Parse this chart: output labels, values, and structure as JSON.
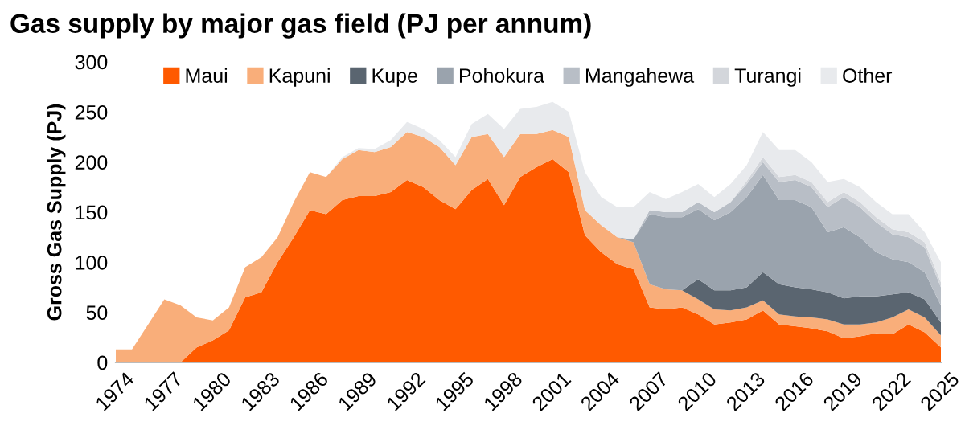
{
  "chart_data": {
    "type": "area",
    "stacked": true,
    "title": "Gas supply by major gas field (PJ per annum)",
    "ylabel": "Gross Gas Supply (PJ)",
    "categories": [
      "1974",
      null,
      null,
      "1977",
      null,
      null,
      "1980",
      null,
      null,
      "1983",
      null,
      null,
      "1986",
      null,
      null,
      "1989",
      null,
      null,
      "1992",
      null,
      null,
      "1995",
      null,
      null,
      "1998",
      null,
      null,
      "2001",
      null,
      null,
      "2004",
      null,
      null,
      "2007",
      null,
      null,
      "2010",
      null,
      null,
      "2013",
      null,
      null,
      "2016",
      null,
      null,
      "2019",
      null,
      null,
      "2022",
      null,
      null,
      "2025"
    ],
    "series": [
      {
        "name": "Maui",
        "color": "#ff5a00",
        "values": [
          null,
          null,
          null,
          null,
          0,
          15,
          22,
          32,
          65,
          70,
          100,
          125,
          152,
          148,
          162,
          166,
          166,
          170,
          182,
          175,
          162,
          153,
          172,
          183,
          157,
          185,
          195,
          203,
          190,
          127,
          110,
          98,
          93,
          55,
          53,
          55,
          48,
          38,
          40,
          43,
          52,
          38,
          36,
          34,
          31,
          24,
          26,
          29,
          28,
          38,
          30,
          15
        ]
      },
      {
        "name": "Kapuni",
        "color": "#f9ae7a",
        "values": [
          13,
          13,
          38,
          63,
          57,
          30,
          20,
          23,
          30,
          35,
          25,
          35,
          38,
          37,
          41,
          46,
          44,
          45,
          48,
          50,
          53,
          44,
          53,
          45,
          48,
          43,
          33,
          29,
          35,
          25,
          27,
          27,
          27,
          23,
          20,
          17,
          15,
          15,
          12,
          12,
          10,
          10,
          10,
          11,
          12,
          14,
          12,
          11,
          17,
          15,
          15,
          12
        ]
      },
      {
        "name": "Kupe",
        "color": "#5a6570",
        "values": [
          null,
          null,
          null,
          null,
          null,
          null,
          null,
          null,
          null,
          null,
          null,
          null,
          null,
          null,
          null,
          null,
          null,
          null,
          null,
          null,
          null,
          null,
          null,
          null,
          null,
          null,
          null,
          null,
          null,
          null,
          null,
          null,
          null,
          null,
          null,
          0,
          20,
          19,
          20,
          20,
          28,
          30,
          29,
          28,
          27,
          26,
          28,
          26,
          23,
          17,
          18,
          13
        ]
      },
      {
        "name": "Pohokura",
        "color": "#9aa3ad",
        "values": [
          null,
          null,
          null,
          null,
          null,
          null,
          null,
          null,
          null,
          null,
          null,
          null,
          null,
          null,
          null,
          null,
          null,
          null,
          null,
          null,
          null,
          null,
          null,
          null,
          null,
          null,
          null,
          null,
          null,
          null,
          null,
          0,
          3,
          70,
          72,
          73,
          70,
          70,
          78,
          90,
          97,
          84,
          87,
          82,
          60,
          71,
          59,
          44,
          35,
          30,
          27,
          17
        ]
      },
      {
        "name": "Mangahewa",
        "color": "#b8bec6",
        "values": [
          null,
          null,
          null,
          null,
          null,
          null,
          null,
          null,
          null,
          null,
          null,
          null,
          null,
          null,
          null,
          null,
          null,
          null,
          null,
          null,
          null,
          null,
          null,
          null,
          null,
          null,
          null,
          null,
          null,
          null,
          null,
          null,
          0,
          4,
          5,
          5,
          7,
          8,
          10,
          13,
          13,
          18,
          20,
          20,
          25,
          30,
          30,
          30,
          25,
          25,
          25,
          18
        ]
      },
      {
        "name": "Turangi",
        "color": "#d3d6db",
        "values": [
          null,
          null,
          null,
          null,
          null,
          null,
          null,
          null,
          null,
          null,
          null,
          null,
          null,
          null,
          null,
          null,
          null,
          null,
          null,
          null,
          null,
          null,
          null,
          null,
          null,
          null,
          null,
          null,
          null,
          null,
          null,
          null,
          null,
          null,
          null,
          null,
          null,
          null,
          0,
          3,
          5,
          5,
          5,
          5,
          5,
          5,
          5,
          5,
          5,
          5,
          5,
          5
        ]
      },
      {
        "name": "Other",
        "color": "#e8eaed",
        "values": [
          null,
          null,
          null,
          null,
          null,
          null,
          null,
          null,
          null,
          null,
          null,
          null,
          null,
          0,
          2,
          2,
          3,
          7,
          10,
          8,
          7,
          8,
          13,
          20,
          28,
          25,
          27,
          28,
          25,
          38,
          28,
          30,
          32,
          18,
          13,
          20,
          18,
          15,
          18,
          16,
          25,
          27,
          25,
          20,
          20,
          13,
          15,
          15,
          15,
          18,
          10,
          20
        ]
      }
    ],
    "ylim": [
      0,
      300
    ],
    "yticks": [
      0,
      50,
      100,
      150,
      200,
      250,
      300
    ],
    "grid": false,
    "legend": "top"
  }
}
